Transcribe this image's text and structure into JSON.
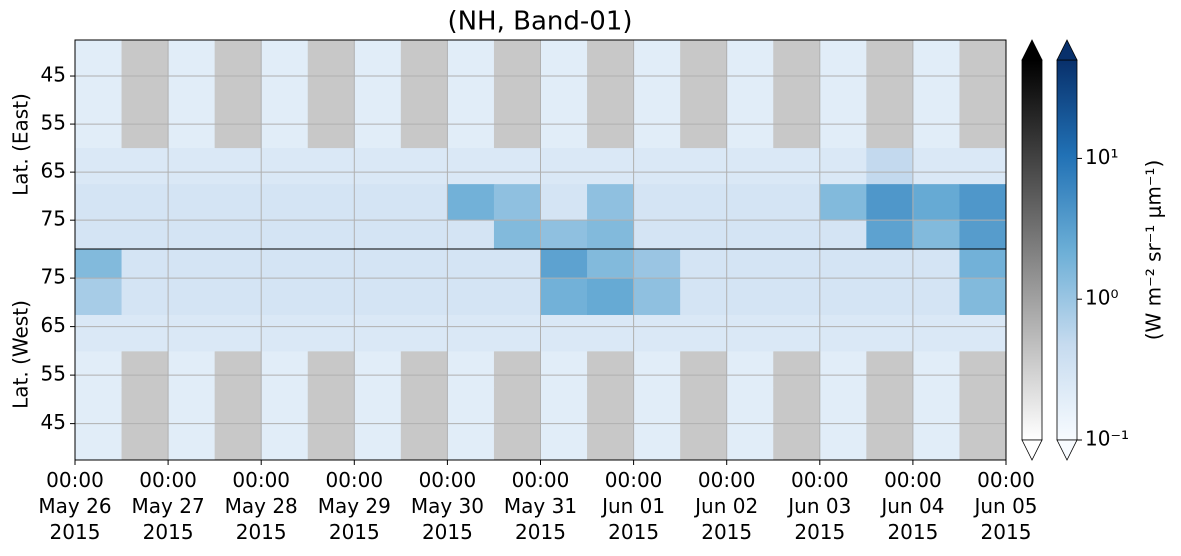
{
  "chart_data": {
    "type": "heatmap",
    "title": "(NH, Band-01)",
    "xlim": [
      "2015-05-26T00:00",
      "2015-06-05T00:00"
    ],
    "xticks": [
      {
        "value": "2015-05-26T00:00",
        "label": "00:00\nMay 26\n2015"
      },
      {
        "value": "2015-05-27T00:00",
        "label": "00:00\nMay 27\n2015"
      },
      {
        "value": "2015-05-28T00:00",
        "label": "00:00\nMay 28\n2015"
      },
      {
        "value": "2015-05-29T00:00",
        "label": "00:00\nMay 29\n2015"
      },
      {
        "value": "2015-05-30T00:00",
        "label": "00:00\nMay 30\n2015"
      },
      {
        "value": "2015-05-31T00:00",
        "label": "00:00\nMay 31\n2015"
      },
      {
        "value": "2015-06-01T00:00",
        "label": "00:00\nJun 01\n2015"
      },
      {
        "value": "2015-06-02T00:00",
        "label": "00:00\nJun 02\n2015"
      },
      {
        "value": "2015-06-03T00:00",
        "label": "00:00\nJun 03\n2015"
      },
      {
        "value": "2015-06-04T00:00",
        "label": "00:00\nJun 04\n2015"
      },
      {
        "value": "2015-06-05T00:00",
        "label": "00:00\nJun 05\n2015"
      }
    ],
    "grid": true,
    "panels": [
      {
        "ylabel": "Lat. (East)",
        "inverted": true,
        "ylim": [
          37.5,
          81
        ],
        "yticks": [
          45,
          55,
          65,
          75
        ],
        "ybins": [
          37.5,
          45,
          52.5,
          60,
          67.5,
          75,
          81
        ],
        "values": [
          [
            0.2,
            null,
            0.2,
            null,
            0.2,
            null,
            0.2,
            null,
            0.2,
            null,
            0.2,
            null,
            0.2,
            null,
            0.2,
            null,
            0.2,
            null,
            0.2,
            null
          ],
          [
            0.2,
            null,
            0.2,
            null,
            0.2,
            null,
            0.2,
            null,
            0.2,
            null,
            0.2,
            null,
            0.2,
            null,
            0.2,
            null,
            0.2,
            null,
            0.2,
            null
          ],
          [
            0.2,
            null,
            0.2,
            null,
            0.2,
            null,
            0.2,
            null,
            0.2,
            null,
            0.2,
            null,
            0.2,
            null,
            0.2,
            null,
            0.2,
            null,
            0.2,
            null
          ],
          [
            0.25,
            0.25,
            0.25,
            0.25,
            0.25,
            0.25,
            0.25,
            0.25,
            0.25,
            0.25,
            0.25,
            0.25,
            0.25,
            0.25,
            0.25,
            0.25,
            0.25,
            0.5,
            0.25,
            0.25
          ],
          [
            0.3,
            0.3,
            0.3,
            0.3,
            0.3,
            0.3,
            0.3,
            0.3,
            2.0,
            1.2,
            0.3,
            1.2,
            0.3,
            0.3,
            0.3,
            0.3,
            1.5,
            4.0,
            2.5,
            4.0
          ],
          [
            0.3,
            0.3,
            0.3,
            0.3,
            0.3,
            0.3,
            0.3,
            0.3,
            0.3,
            1.5,
            1.2,
            1.5,
            0.3,
            0.3,
            0.3,
            0.3,
            0.3,
            3.0,
            1.5,
            3.5
          ]
        ]
      },
      {
        "ylabel": "Lat. (West)",
        "inverted": false,
        "ylim": [
          37.5,
          81
        ],
        "yticks": [
          45,
          55,
          65,
          75
        ],
        "ybins": [
          37.5,
          45,
          52.5,
          60,
          67.5,
          75,
          81
        ],
        "values": [
          [
            0.2,
            null,
            0.2,
            null,
            0.2,
            null,
            0.2,
            null,
            0.2,
            null,
            0.2,
            null,
            0.2,
            null,
            0.2,
            null,
            0.2,
            null,
            0.2,
            null
          ],
          [
            0.2,
            null,
            0.2,
            null,
            0.2,
            null,
            0.2,
            null,
            0.2,
            null,
            0.2,
            null,
            0.2,
            null,
            0.2,
            null,
            0.2,
            null,
            0.2,
            null
          ],
          [
            0.2,
            null,
            0.2,
            null,
            0.2,
            null,
            0.2,
            null,
            0.2,
            null,
            0.2,
            null,
            0.2,
            null,
            0.2,
            null,
            0.2,
            null,
            0.2,
            null
          ],
          [
            0.25,
            0.25,
            0.25,
            0.25,
            0.25,
            0.25,
            0.25,
            0.25,
            0.25,
            0.25,
            0.25,
            0.25,
            0.25,
            0.25,
            0.25,
            0.25,
            0.25,
            0.25,
            0.25,
            0.25
          ],
          [
            0.8,
            0.3,
            0.3,
            0.3,
            0.3,
            0.3,
            0.3,
            0.3,
            0.3,
            0.3,
            2.0,
            2.5,
            1.2,
            0.3,
            0.3,
            0.3,
            0.3,
            0.3,
            0.3,
            1.5
          ],
          [
            1.5,
            0.3,
            0.3,
            0.3,
            0.3,
            0.3,
            0.3,
            0.3,
            0.3,
            0.3,
            3.0,
            1.5,
            1.0,
            0.3,
            0.3,
            0.3,
            0.3,
            0.3,
            0.3,
            2.0
          ]
        ]
      }
    ],
    "colorbar": {
      "label": "(W m⁻² sr⁻¹ μm⁻¹)",
      "scale": "log",
      "clim": [
        0.1,
        50
      ],
      "ticks": [
        {
          "value": 0.1,
          "label": "10⁻¹"
        },
        {
          "value": 1,
          "label": "10⁰"
        },
        {
          "value": 10,
          "label": "10¹"
        }
      ],
      "colors": [
        "#f7fbff",
        "#c6dbef",
        "#6baed6",
        "#2171b5",
        "#08306b"
      ],
      "gray_colors": [
        "#ffffff",
        "#000000"
      ],
      "missing_color": "#c8c8c8"
    }
  }
}
